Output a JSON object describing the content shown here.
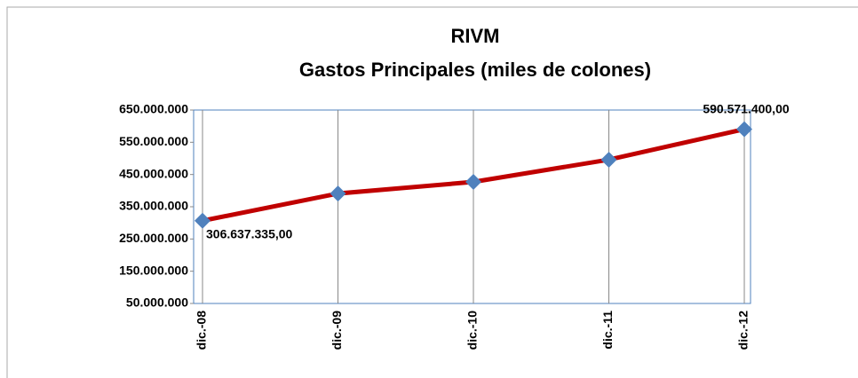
{
  "chart_data": {
    "type": "line",
    "title": "RIVM",
    "subtitle": "Gastos Principales (miles de colones)",
    "categories": [
      "dic.-08",
      "dic.-09",
      "dic.-10",
      "dic.-11",
      "dic.-12"
    ],
    "series": [
      {
        "name": "Gastos Principales",
        "color": "#c00000",
        "marker_color": "#4f81bd",
        "values": [
          306637335,
          391000000,
          427000000,
          496000000,
          590571400
        ],
        "value_labels": [
          "306.637.335,00",
          null,
          null,
          null,
          "590.571.400,00"
        ]
      }
    ],
    "ylim": [
      50000000,
      650000000
    ],
    "yticks": [
      {
        "value": 50000000,
        "label": "50.000.000"
      },
      {
        "value": 150000000,
        "label": "150.000.000"
      },
      {
        "value": 250000000,
        "label": "250.000.000"
      },
      {
        "value": 350000000,
        "label": "350.000.000"
      },
      {
        "value": 450000000,
        "label": "450.000.000"
      },
      {
        "value": 550000000,
        "label": "550.000.000"
      },
      {
        "value": 650000000,
        "label": "650.000.000"
      }
    ],
    "grid": true
  }
}
